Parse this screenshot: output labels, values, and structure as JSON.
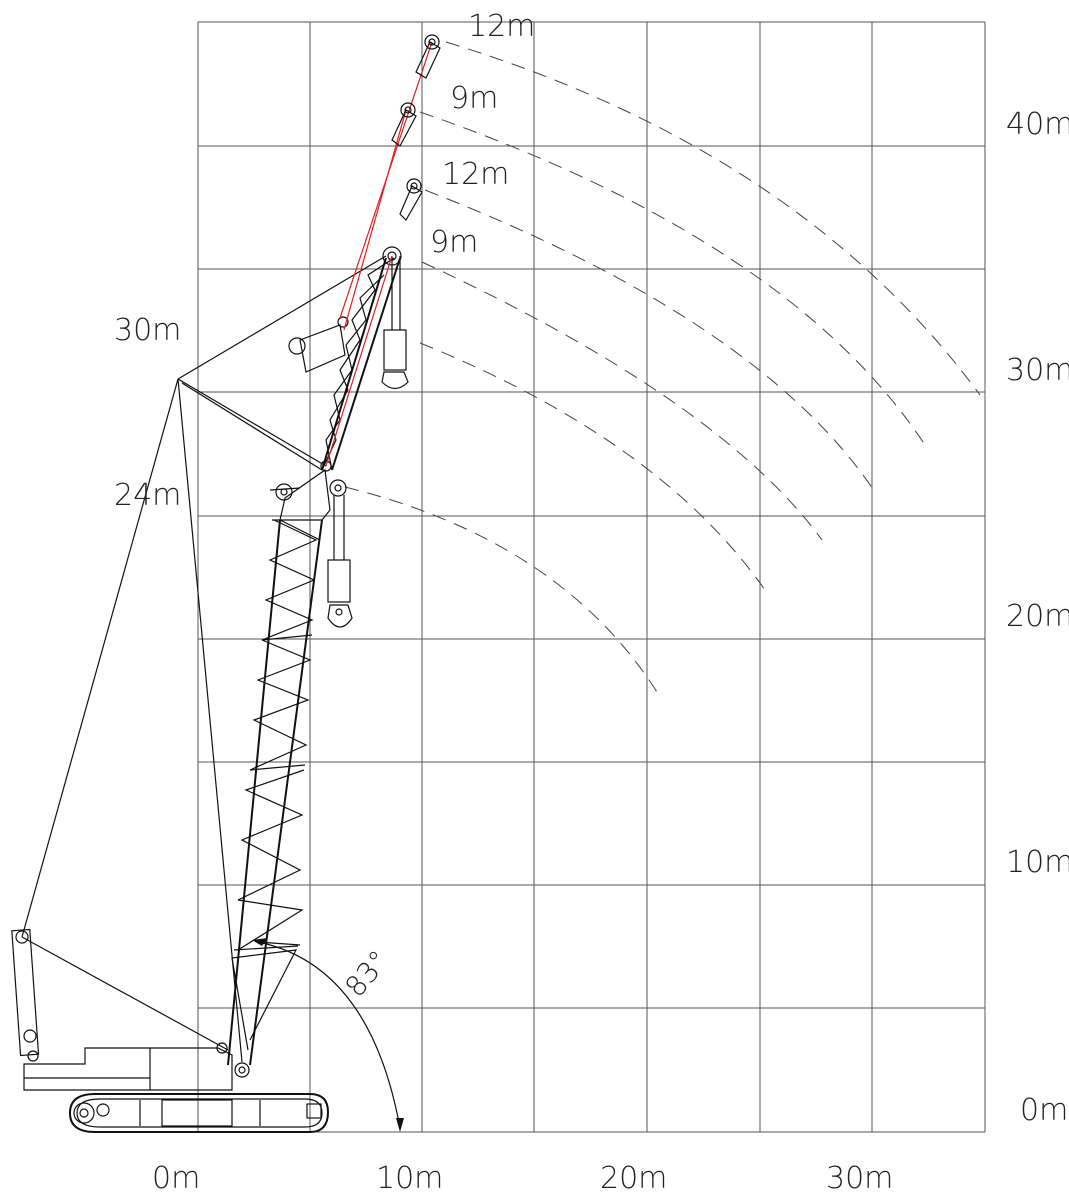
{
  "diagram": {
    "y_axis_labels": [
      "40m",
      "30m",
      "20m",
      "10m",
      "0m"
    ],
    "x_axis_labels": [
      "0m",
      "10m",
      "20m",
      "30m"
    ],
    "boom_labels": [
      "30m",
      "24m"
    ],
    "jib_labels": [
      "12m",
      "9m",
      "12m",
      "9m"
    ],
    "angle_label": "83°"
  },
  "colors": {
    "grid": "#555555",
    "lines": "#111111",
    "jib_rope": "#e02020"
  }
}
